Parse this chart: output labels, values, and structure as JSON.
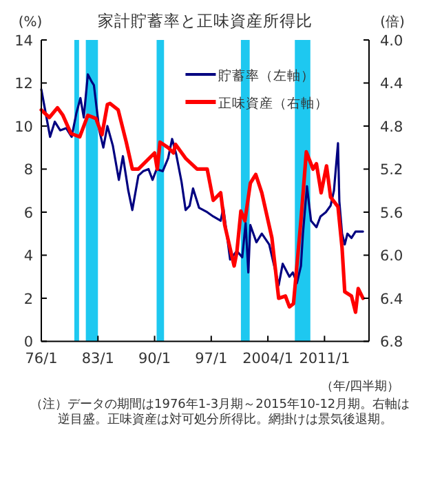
{
  "chart_data": {
    "type": "line",
    "title": "家計貯蓄率と正味資産所得比",
    "ylabel": "(%)",
    "y2label": "(倍)",
    "xlabel": "（年/四半期）",
    "annotations": [
      "（注）データの期間は1976年1-3月期～2015年10-12月期。右軸は逆目盛。正味資産は対可処分所得比。網掛けは景気後退期。"
    ],
    "xlim": [
      "1976-01",
      "2016-07"
    ],
    "xticks": [
      {
        "value": "1976-01",
        "label": "76/1"
      },
      {
        "value": "1983-01",
        "label": "83/1"
      },
      {
        "value": "1990-01",
        "label": "90/1"
      },
      {
        "value": "1997-01",
        "label": "97/1"
      },
      {
        "value": "2004-01",
        "label": "2004/1"
      },
      {
        "value": "2011-01",
        "label": "2011/1"
      }
    ],
    "ylim": [
      0,
      14
    ],
    "yticks": [
      0,
      2,
      4,
      6,
      8,
      10,
      12,
      14
    ],
    "y2lim": [
      6.8,
      4.0
    ],
    "y2ticks": [
      {
        "value": 4.0,
        "label": "4.0"
      },
      {
        "value": 4.4,
        "label": "4.4"
      },
      {
        "value": 4.8,
        "label": "4.8"
      },
      {
        "value": 5.2,
        "label": "5.2"
      },
      {
        "value": 5.6,
        "label": "5.6"
      },
      {
        "value": 6.0,
        "label": "6.0"
      },
      {
        "value": 6.4,
        "label": "6.4"
      },
      {
        "value": 6.8,
        "label": "6.8"
      }
    ],
    "legend": "top right",
    "grid": false,
    "bands": [
      {
        "axis": "x",
        "from": "1980-02",
        "to": "1980-09",
        "color": "#1ec8f0"
      },
      {
        "axis": "x",
        "from": "1981-07",
        "to": "1983-01",
        "color": "#1ec8f0"
      },
      {
        "axis": "x",
        "from": "1990-04",
        "to": "1991-03",
        "color": "#1ec8f0"
      },
      {
        "axis": "x",
        "from": "2000-09",
        "to": "2001-10",
        "color": "#1ec8f0"
      },
      {
        "axis": "x",
        "from": "2007-05",
        "to": "2009-04",
        "color": "#1ec8f0"
      }
    ],
    "series": [
      {
        "name": "貯蓄率（左軸）",
        "color": "#000080",
        "x": [
          "1976-01",
          "1977-02",
          "1977-09",
          "1978-05",
          "1979-02",
          "1979-10",
          "1980-05",
          "1980-11",
          "1981-04",
          "1981-10",
          "1982-03",
          "1982-07",
          "1983-03",
          "1983-09",
          "1984-03",
          "1984-11",
          "1985-08",
          "1986-02",
          "1986-10",
          "1987-04",
          "1988-01",
          "1988-08",
          "1989-04",
          "1989-10",
          "1990-04",
          "1991-01",
          "1991-09",
          "1992-03",
          "1992-09",
          "1993-05",
          "1993-11",
          "1994-05",
          "1994-10",
          "1995-07",
          "1996-07",
          "1997-04",
          "1998-03",
          "1998-07",
          "1999-05",
          "2000-03",
          "2000-11",
          "2001-04",
          "2001-08",
          "2001-11",
          "2002-08",
          "2003-04",
          "2004-03",
          "2005-05",
          "2005-11",
          "2006-09",
          "2007-02",
          "2007-08",
          "2008-02",
          "2008-05",
          "2008-11",
          "2009-05",
          "2010-01",
          "2010-07",
          "2011-03",
          "2011-10",
          "2012-03",
          "2012-09",
          "2012-11",
          "2013-03",
          "2013-07",
          "2013-11",
          "2014-05",
          "2014-11",
          "2015-10"
        ],
        "values": [
          11.7,
          9.5,
          10.2,
          9.8,
          9.9,
          9.5,
          10.6,
          11.3,
          10.4,
          12.4,
          12.1,
          11.9,
          9.8,
          9.0,
          10.0,
          9.1,
          7.5,
          8.6,
          7.0,
          6.1,
          7.7,
          7.9,
          8.0,
          7.5,
          8.0,
          7.9,
          8.5,
          9.4,
          8.7,
          7.4,
          6.1,
          6.3,
          7.1,
          6.2,
          6.0,
          5.8,
          5.6,
          6.2,
          3.8,
          4.2,
          3.9,
          5.5,
          3.2,
          5.4,
          4.6,
          5.0,
          4.5,
          2.6,
          3.6,
          3.0,
          3.2,
          2.7,
          3.5,
          5.0,
          7.2,
          5.6,
          5.3,
          5.8,
          6.0,
          6.3,
          7.0,
          9.2,
          6.5,
          5.0,
          4.5,
          5.0,
          4.8,
          5.1,
          5.1
        ]
      },
      {
        "name": "正味資産（右軸）",
        "color": "#ff0000",
        "axis": "y2",
        "x": [
          "1976-01",
          "1977-01",
          "1978-01",
          "1978-09",
          "1979-09",
          "1980-10",
          "1981-10",
          "1982-10",
          "1983-07",
          "1984-03",
          "1984-07",
          "1985-07",
          "1986-07",
          "1987-04",
          "1988-01",
          "1990-01",
          "1990-05",
          "1990-09",
          "1991-09",
          "1992-05",
          "1992-08",
          "1993-11",
          "1995-04",
          "1996-07",
          "1997-04",
          "1998-03",
          "1998-09",
          "1999-11",
          "2000-03",
          "2000-09",
          "2001-03",
          "2001-11",
          "2002-07",
          "2003-04",
          "2004-07",
          "2005-05",
          "2006-03",
          "2006-09",
          "2007-03",
          "2008-02",
          "2008-10",
          "2009-08",
          "2010-01",
          "2010-08",
          "2011-04",
          "2011-10",
          "2012-09",
          "2013-03",
          "2013-07",
          "2014-05",
          "2014-11",
          "2015-03",
          "2015-10"
        ],
        "values": [
          4.65,
          4.72,
          4.63,
          4.7,
          4.87,
          4.9,
          4.7,
          4.73,
          4.88,
          4.6,
          4.59,
          4.65,
          4.95,
          5.2,
          5.2,
          5.05,
          5.2,
          4.95,
          5.0,
          5.05,
          4.97,
          5.1,
          5.2,
          5.2,
          5.49,
          5.42,
          5.72,
          6.1,
          5.97,
          5.59,
          5.68,
          5.33,
          5.25,
          5.42,
          5.84,
          6.4,
          6.38,
          6.48,
          6.45,
          5.68,
          5.04,
          5.2,
          5.15,
          5.42,
          5.17,
          5.46,
          5.55,
          5.93,
          6.34,
          6.38,
          6.53,
          6.31,
          6.4
        ]
      }
    ]
  }
}
